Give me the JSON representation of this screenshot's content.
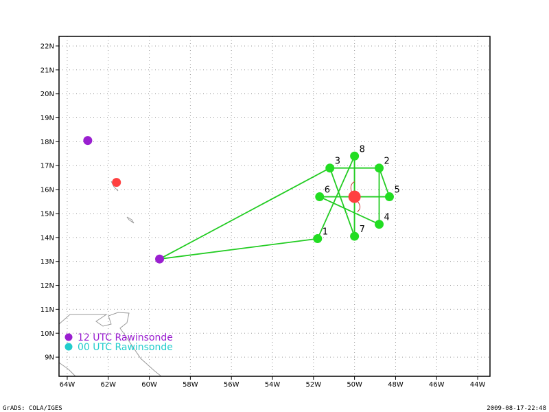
{
  "map": {
    "lon_range": [
      -64.4,
      -43.4
    ],
    "lat_range": [
      8.2,
      22.4
    ],
    "lon_ticks": [
      "64W",
      "62W",
      "60W",
      "58W",
      "56W",
      "54W",
      "52W",
      "50W",
      "48W",
      "46W",
      "44W"
    ],
    "lon_tick_values": [
      -64,
      -62,
      -60,
      -58,
      -56,
      -54,
      -52,
      -50,
      -48,
      -46,
      -44
    ],
    "lat_ticks": [
      "9N",
      "10N",
      "11N",
      "12N",
      "13N",
      "14N",
      "15N",
      "16N",
      "17N",
      "18N",
      "19N",
      "20N",
      "21N",
      "22N"
    ],
    "lat_tick_values": [
      9,
      10,
      11,
      12,
      13,
      14,
      15,
      16,
      17,
      18,
      19,
      20,
      21,
      22
    ],
    "grid": "dotted"
  },
  "storm_center": {
    "lon": -50.0,
    "lat": 15.7,
    "color": "#ff4040"
  },
  "secondary_center": {
    "lon": -61.6,
    "lat": 16.3,
    "color": "#ff4040"
  },
  "rawinsondes_12utc": [
    {
      "lon": -63.0,
      "lat": 18.05
    },
    {
      "lon": -59.5,
      "lat": 13.1
    }
  ],
  "drop_points": [
    {
      "label": "1",
      "lon": -51.8,
      "lat": 13.95
    },
    {
      "label": "2",
      "lon": -48.8,
      "lat": 16.9
    },
    {
      "label": "3",
      "lon": -51.2,
      "lat": 16.9
    },
    {
      "label": "4",
      "lon": -48.8,
      "lat": 14.55
    },
    {
      "label": "5",
      "lon": -48.3,
      "lat": 15.7
    },
    {
      "label": "6",
      "lon": -51.7,
      "lat": 15.7
    },
    {
      "label": "7",
      "lon": -50.0,
      "lat": 14.05
    },
    {
      "label": "8",
      "lon": -50.0,
      "lat": 17.4
    }
  ],
  "colors": {
    "track": "#22cc22",
    "point": "#22dd22",
    "rawinsonde_12": "#9a1fd0",
    "rawinsonde_00": "#22cccc",
    "coast": "#999999"
  },
  "legend": {
    "item1": "12 UTC Rawinsonde",
    "item2": "00 UTC Rawinsonde"
  },
  "footer": {
    "left": "GrADS: COLA/IGES",
    "right": "2009-08-17-22:48"
  }
}
